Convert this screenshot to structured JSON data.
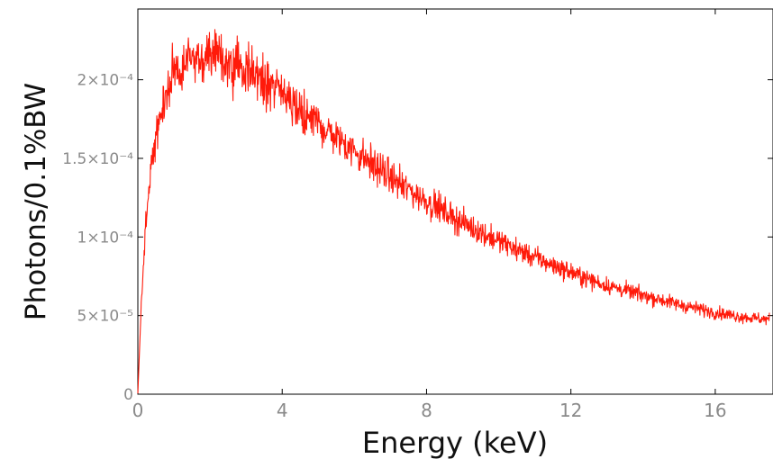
{
  "chart_data": {
    "type": "line",
    "title": "",
    "xlabel": "Energy (keV)",
    "ylabel": "Photons/0.1%BW",
    "xlim": [
      0,
      17.6
    ],
    "ylim": [
      0,
      0.000245
    ],
    "x_ticks": [
      {
        "value": 0,
        "label": "0"
      },
      {
        "value": 4,
        "label": "4"
      },
      {
        "value": 8,
        "label": "8"
      },
      {
        "value": 12,
        "label": "12"
      },
      {
        "value": 16,
        "label": "16"
      }
    ],
    "y_ticks": [
      {
        "value": 0,
        "label": "0"
      },
      {
        "value": 5e-05,
        "label": "5×10⁻⁵"
      },
      {
        "value": 0.0001,
        "label": "1×10⁻⁴"
      },
      {
        "value": 0.00015,
        "label": "1.5×10⁻⁴"
      },
      {
        "value": 0.0002,
        "label": "2×10⁻⁴"
      }
    ],
    "grid": false,
    "series": [
      {
        "color": "#ff1a0a",
        "noisy": true,
        "x": [
          0,
          0.05,
          0.1,
          0.2,
          0.3,
          0.4,
          0.5,
          0.6,
          0.7,
          0.8,
          0.9,
          1.0,
          1.2,
          1.4,
          1.6,
          1.8,
          2.0,
          2.2,
          2.4,
          2.6,
          2.8,
          3.0,
          3.2,
          3.4,
          3.6,
          3.8,
          4.0,
          4.5,
          5.0,
          5.5,
          6.0,
          6.5,
          7.0,
          7.5,
          8.0,
          8.5,
          9.0,
          9.5,
          10.0,
          10.5,
          11.0,
          11.5,
          12.0,
          12.5,
          13.0,
          13.5,
          14.0,
          14.5,
          15.0,
          15.5,
          16.0,
          16.5,
          17.0,
          17.5
        ],
        "y": [
          5e-07,
          3e-05,
          6e-05,
          0.0001,
          0.00013,
          0.000148,
          0.000162,
          0.000175,
          0.000185,
          0.000193,
          0.000199,
          0.000204,
          0.000209,
          0.000212,
          0.000214,
          0.000215,
          0.000215,
          0.000214,
          0.000212,
          0.00021,
          0.000208,
          0.000206,
          0.000204,
          0.000201,
          0.000198,
          0.000194,
          0.00019,
          0.000181,
          0.000172,
          0.000163,
          0.000155,
          0.000146,
          0.000138,
          0.00013,
          0.000123,
          0.000116,
          0.000109,
          0.000103,
          9.75e-05,
          9.2e-05,
          8.7e-05,
          8.2e-05,
          7.75e-05,
          7.3e-05,
          6.9e-05,
          6.6e-05,
          6.3e-05,
          6e-05,
          5.7e-05,
          5.45e-05,
          5.2e-05,
          5e-05,
          4.85e-05,
          4.75e-05
        ]
      }
    ]
  }
}
